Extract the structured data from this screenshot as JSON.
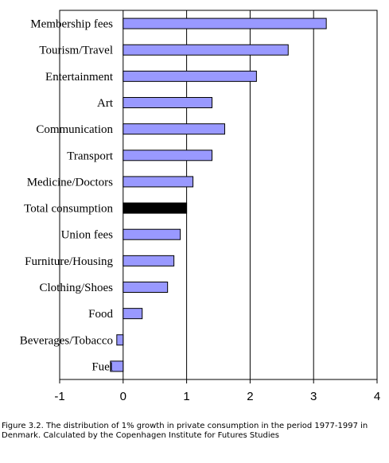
{
  "chart_data": {
    "type": "bar",
    "orientation": "horizontal",
    "categories": [
      "Membership fees",
      "Tourism/Travel",
      "Entertainment",
      "Art",
      "Communication",
      "Transport",
      "Medicine/Doctors",
      "Total consumption",
      "Union fees",
      "Furniture/Housing",
      "Clothing/Shoes",
      "Food",
      "Beverages/Tobacco",
      "Fuel"
    ],
    "values": [
      3.2,
      2.6,
      2.1,
      1.4,
      1.6,
      1.4,
      1.1,
      1.0,
      0.9,
      0.8,
      0.7,
      0.3,
      -0.1,
      -0.2
    ],
    "highlight_category": "Total consumption",
    "bar_color": "#9999ff",
    "highlight_color": "#000000",
    "xlim": [
      -1,
      4
    ],
    "xticks": [
      "-1",
      "0",
      "1",
      "2",
      "3",
      "4"
    ],
    "grid": "vertical",
    "title": "",
    "xlabel": "",
    "ylabel": ""
  },
  "caption": "Figure 3.2. The distribution of 1% growth in private consumption in the period 1977-1997 in Denmark. Calculated by the Copenhagen Institute for Futures Studies"
}
